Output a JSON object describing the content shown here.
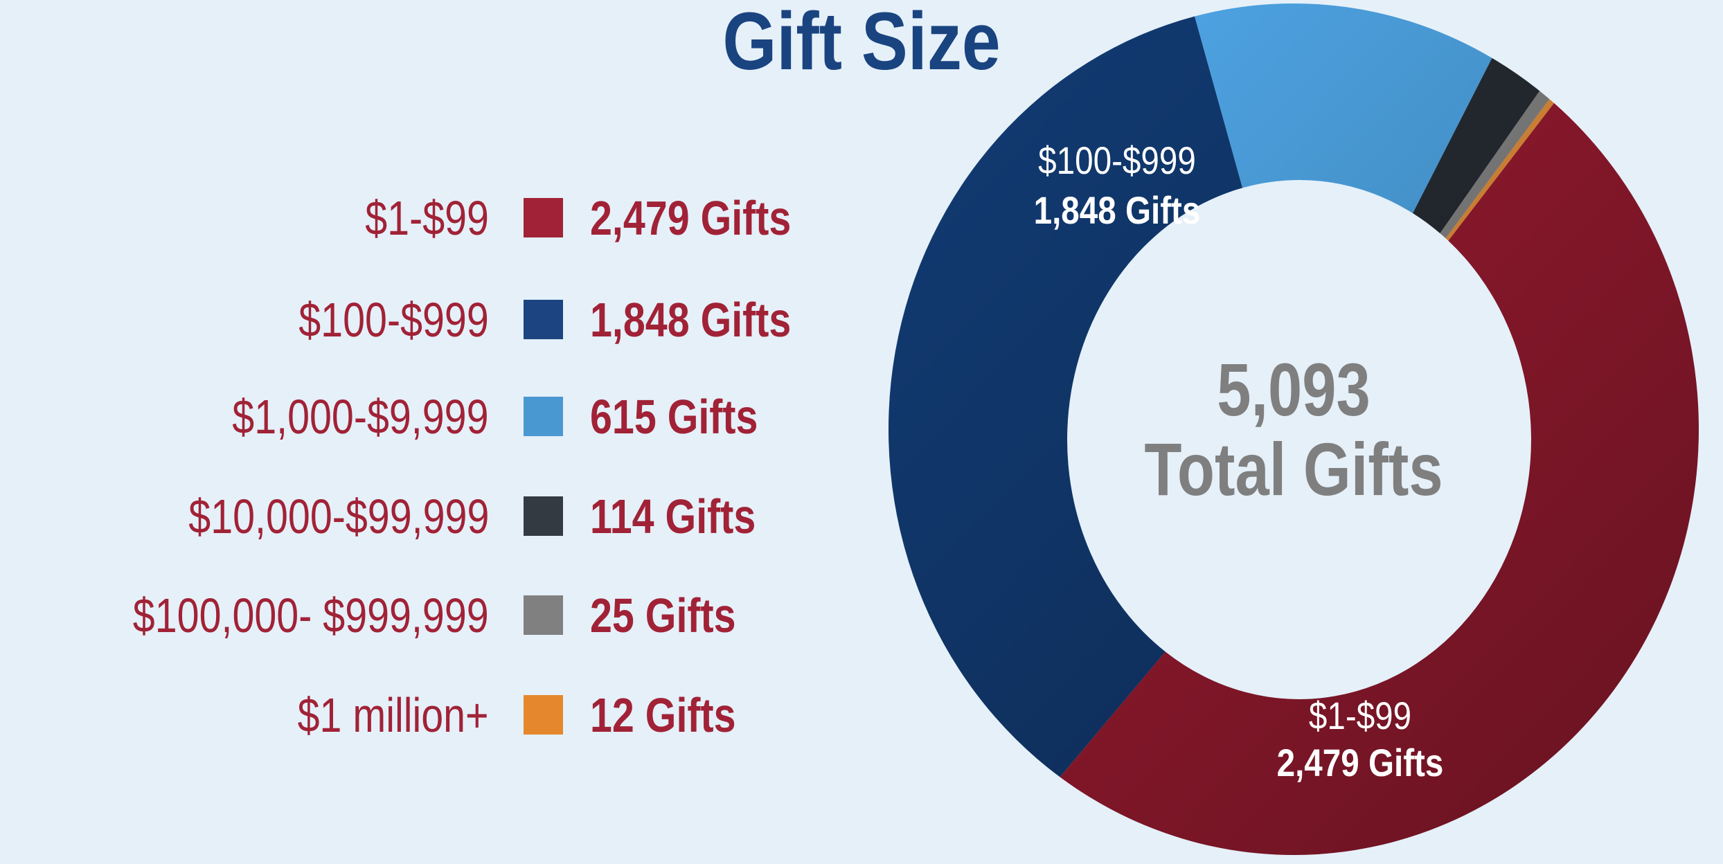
{
  "chart_data": {
    "type": "pie",
    "variant": "donut",
    "title": "Gift Size",
    "total_value": "5,093",
    "total_label": "Total Gifts",
    "legend_position": "left",
    "slices": [
      {
        "category": "$1-$99",
        "value": 2479,
        "value_label": "2,479 Gifts",
        "color": "#9e1c32"
      },
      {
        "category": "$100-$999",
        "value": 1848,
        "value_label": "1,848 Gifts",
        "color": "#123c75"
      },
      {
        "category": "$1,000-$9,999",
        "value": 615,
        "value_label": "615 Gifts",
        "color": "#52adf0"
      },
      {
        "category": "$10,000-$99,999",
        "value": 114,
        "value_label": "114 Gifts",
        "color": "#272e35"
      },
      {
        "category": "$100,000- $999,999",
        "value": 25,
        "value_label": "25 Gifts",
        "color": "#8a8a8a"
      },
      {
        "category": "$1 million+",
        "value": 12,
        "value_label": "12 Gifts",
        "color": "#f0963c"
      }
    ],
    "legend_swatch_colors": [
      "#a12236",
      "#1b4480",
      "#4a98d2",
      "#333a42",
      "#808080",
      "#e5872c"
    ]
  }
}
